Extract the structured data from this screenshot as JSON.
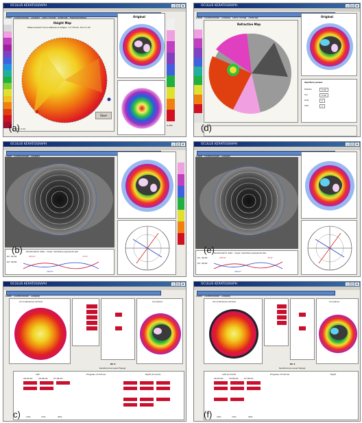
{
  "panels": [
    {
      "label": "(a)",
      "title": "OCULUS KERATOGRAPH",
      "map_title": "Height Map",
      "map_subtitle": "Measurement minus Reference Shape: r=7.57mm, Exc=1.04",
      "side_title": "Original",
      "exc": "Exc.: 0.34",
      "button": "Save",
      "value": "0.250"
    },
    {
      "label": "(d)",
      "title": "OCULUS KERATOGRAPH",
      "map_title": "Refractive Map",
      "side_title": "Original",
      "aperture": "Aperture power",
      "fields": [
        "Sphere",
        "Cyl",
        "Axis",
        "Add"
      ],
      "field_values": [
        "0.00",
        "0.00",
        "0",
        "0"
      ]
    },
    {
      "label": "(b)",
      "title": "OCULUS KERATOGRAPH",
      "k1": "K1: 42.30",
      "k2": "K2: 46.90",
      "caption": "Keratometric data - major meridians perpendicular",
      "val1": "253.9°",
      "val2": "73.9°",
      "val3": "163.9°"
    },
    {
      "label": "(e)",
      "title": "OCULUS KERATOGRAPH",
      "k1": "K1: 40.50",
      "k2": "K2: 46.90",
      "caption": "Keratometric data - major meridians perpendicular",
      "val1": "255.9°",
      "val2": "75.9°",
      "val3": "165.9°"
    },
    {
      "label": "c)",
      "title": "OCULUS KERATOGRAPH",
      "map_left": "Unconstrained vertical",
      "map_right": "Curvature",
      "kc": "KC 3",
      "topo": "Keratoconus Level Topogr.",
      "progress": "Progress of Indices",
      "left": "Left",
      "right": "Right (Current)",
      "d1": "29.03.09",
      "d2": "16.06.09",
      "d3": "07.08.10",
      "pct": [
        "14%",
        "13%",
        "45%"
      ]
    },
    {
      "label": "(f)",
      "title": "OCULUS KERATOGRAPH",
      "map_left": "Unconstrained vertical",
      "map_right": "Curvature",
      "kc": "KC 3",
      "topo": "Keratoconus Level Topogr.",
      "progress": "Progress of Indices",
      "left": "Left (Current)",
      "right": "Right",
      "d1": "29.03.09",
      "d2": "16.06.09",
      "d3": "07.08.10",
      "pct": [
        "24%",
        "13%",
        "40%"
      ]
    }
  ],
  "menu": [
    "Datei",
    "Examination",
    "Display",
    "Lens Fitting",
    "Settings",
    "Miscellaneous"
  ],
  "colors": {
    "titlebar": "#0a246a",
    "accent": "#c8102e",
    "panel": "#ecebe6"
  }
}
